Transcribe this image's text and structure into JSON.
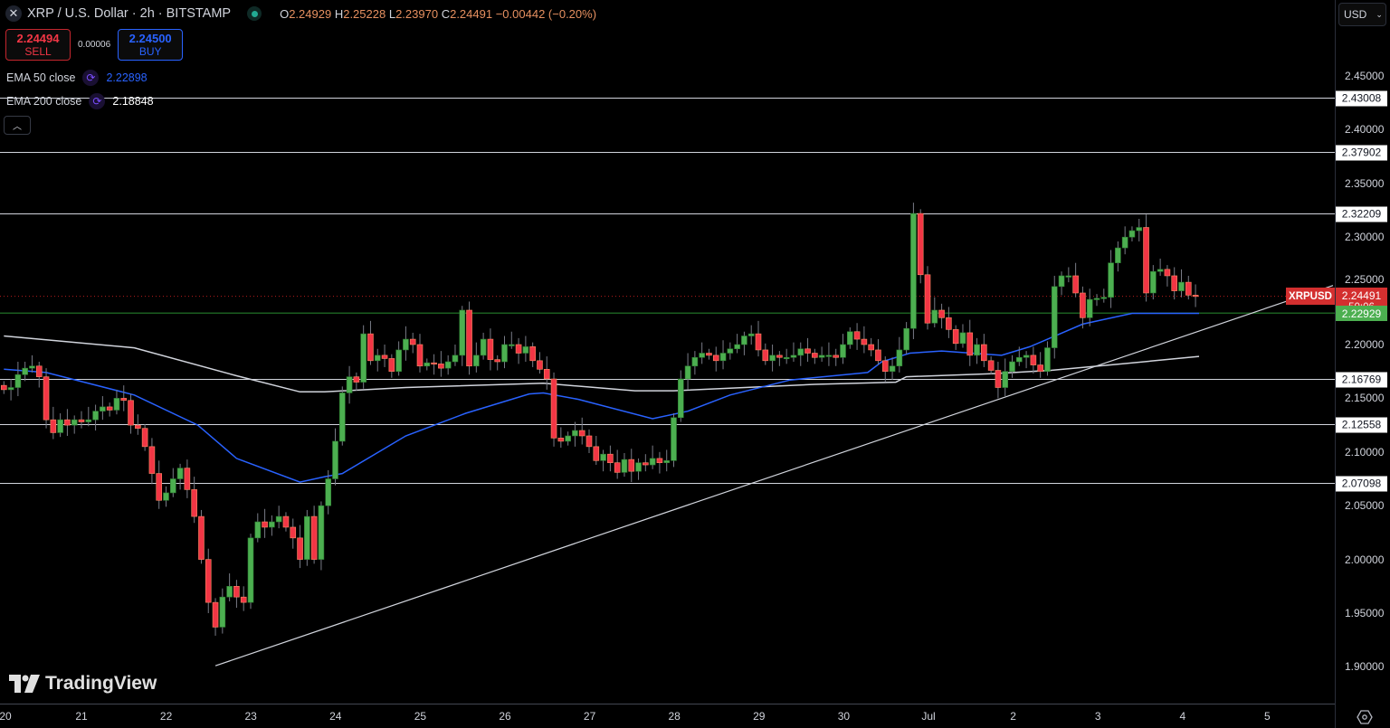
{
  "header": {
    "symbol_icon": "x-close-icon",
    "title": "XRP / U.S. Dollar · 2h · BITSTAMP",
    "market_status_color": "#22ab94",
    "ohlc": {
      "o_label": "O",
      "o": "2.24929",
      "h_label": "H",
      "h": "2.25228",
      "l_label": "L",
      "l": "2.23970",
      "c_label": "C",
      "c": "2.24491",
      "change": "−0.00442 (−0.20%)"
    }
  },
  "trade": {
    "sell_price": "2.24494",
    "sell_label": "SELL",
    "spread": "0.00006",
    "buy_price": "2.24500",
    "buy_label": "BUY"
  },
  "indicators": [
    {
      "label": "EMA 50 close",
      "value": "2.22898",
      "color": "#2962ff"
    },
    {
      "label": "EMA 200 close",
      "value": "2.18848",
      "color": "#ffffff"
    }
  ],
  "currency_selector": "USD",
  "last_price": {
    "symbol": "XRPUSD",
    "price": "2.24491",
    "countdown": "50:06",
    "ema_value": "2.22929"
  },
  "chart_data": {
    "type": "candlestick",
    "interval_hours": 2,
    "first_candle": "Jun 20 02:00",
    "closes": [
      2.158,
      2.16,
      2.172,
      2.178,
      2.18,
      2.17,
      2.13,
      2.118,
      2.13,
      2.125,
      2.13,
      2.128,
      2.13,
      2.138,
      2.142,
      2.139,
      2.15,
      2.148,
      2.125,
      2.122,
      2.105,
      2.08,
      2.055,
      2.062,
      2.075,
      2.085,
      2.065,
      2.04,
      2.0,
      1.96,
      1.937,
      1.965,
      1.975,
      1.965,
      1.96,
      2.02,
      2.035,
      2.03,
      2.035,
      2.04,
      2.03,
      2.02,
      2.0,
      2.04,
      2.0,
      2.05,
      2.075,
      2.11,
      2.155,
      2.17,
      2.165,
      2.21,
      2.185,
      2.19,
      2.187,
      2.175,
      2.195,
      2.205,
      2.2,
      2.18,
      2.183,
      2.182,
      2.178,
      2.184,
      2.19,
      2.232,
      2.18,
      2.19,
      2.205,
      2.186,
      2.184,
      2.2,
      2.2,
      2.192,
      2.198,
      2.185,
      2.177,
      2.168,
      2.113,
      2.11,
      2.115,
      2.12,
      2.115,
      2.105,
      2.092,
      2.098,
      2.09,
      2.081,
      2.093,
      2.082,
      2.09,
      2.088,
      2.094,
      2.09,
      2.092,
      2.132,
      2.168,
      2.18,
      2.188,
      2.192,
      2.19,
      2.185,
      2.192,
      2.196,
      2.2,
      2.208,
      2.21,
      2.195,
      2.185,
      2.19,
      2.188,
      2.188,
      2.19,
      2.196,
      2.192,
      2.188,
      2.19,
      2.19,
      2.188,
      2.2,
      2.212,
      2.205,
      2.2,
      2.195,
      2.185,
      2.175,
      2.18,
      2.195,
      2.215,
      2.322,
      2.265,
      2.22,
      2.232,
      2.225,
      2.214,
      2.201,
      2.211,
      2.19,
      2.2,
      2.185,
      2.176,
      2.16,
      2.175,
      2.184,
      2.188,
      2.19,
      2.181,
      2.175,
      2.197,
      2.254,
      2.264,
      2.264,
      2.248,
      2.225,
      2.242,
      2.243,
      2.244,
      2.276,
      2.29,
      2.3,
      2.306,
      2.309,
      2.248,
      2.268,
      2.27,
      2.264,
      2.25,
      2.258,
      2.246,
      2.24491
    ],
    "up_color": "#4caf50",
    "down_color": "#f23645",
    "ema50": [
      [
        "Jun 20 02:00",
        2.177
      ],
      [
        "Jun 20 14:00",
        2.174
      ],
      [
        "Jun 21 15:00",
        2.153
      ],
      [
        "Jun 22 09:00",
        2.125
      ],
      [
        "Jun 22 20:00",
        2.094
      ],
      [
        "Jun 23 14:00",
        2.072
      ],
      [
        "Jun 23 21:00",
        2.077
      ],
      [
        "Jun 24 02:00",
        2.08
      ],
      [
        "Jun 24 20:00",
        2.115
      ],
      [
        "Jun 25 13:00",
        2.136
      ],
      [
        "Jun 26 07:00",
        2.154
      ],
      [
        "Jun 26 11:00",
        2.155
      ],
      [
        "Jun 26 21:00",
        2.149
      ],
      [
        "Jun 27 18:00",
        2.131
      ],
      [
        "Jun 28 04:00",
        2.138
      ],
      [
        "Jun 28 16:00",
        2.153
      ],
      [
        "Jun 29 09:00",
        2.167
      ],
      [
        "Jun 30 07:00",
        2.174
      ],
      [
        "Jun 30 11:00",
        2.184
      ],
      [
        "Jun 30 19:00",
        2.192
      ],
      [
        "Jul 1 04:00",
        2.194
      ],
      [
        "Jul 1 21:00",
        2.19
      ],
      [
        "Jul 2 05:00",
        2.198
      ],
      [
        "Jul 2 20:00",
        2.219
      ],
      [
        "Jul 3 10:00",
        2.229
      ],
      [
        "Jul 4 05:00",
        2.229
      ]
    ],
    "ema200": [
      [
        "Jun 20 02:00",
        2.208
      ],
      [
        "Jun 21 15:00",
        2.197
      ],
      [
        "Jun 22 20:00",
        2.171
      ],
      [
        "Jun 23 14:00",
        2.156
      ],
      [
        "Jun 23 21:00",
        2.156
      ],
      [
        "Jun 24 20:00",
        2.16
      ],
      [
        "Jun 26 11:00",
        2.164
      ],
      [
        "Jun 27 13:00",
        2.157
      ],
      [
        "Jun 28 00:00",
        2.157
      ],
      [
        "Jun 29 16:00",
        2.163
      ],
      [
        "Jun 30 15:00",
        2.165
      ],
      [
        "Jun 30 18:00",
        2.17
      ],
      [
        "Jul 1 19:00",
        2.173
      ],
      [
        "Jul 2 11:00",
        2.176
      ],
      [
        "Jul 3 07:00",
        2.182
      ],
      [
        "Jul 4 05:00",
        2.189
      ]
    ],
    "trendline": [
      [
        "Jun 22 14:00",
        1.901
      ],
      [
        "Jul 5 19:00",
        2.255
      ]
    ],
    "horizontal_levels": [
      "2.43008",
      "2.37902",
      "2.32209",
      "2.16769",
      "2.12558",
      "2.07098"
    ],
    "y_ticks": [
      "2.45000",
      "2.40000",
      "2.35000",
      "2.30000",
      "2.25000",
      "2.20000",
      "2.15000",
      "2.10000",
      "2.05000",
      "2.00000",
      "1.95000",
      "1.90000"
    ],
    "ylim": [
      1.86,
      2.52
    ],
    "x_ticks": [
      "20",
      "21",
      "22",
      "23",
      "24",
      "25",
      "26",
      "27",
      "28",
      "29",
      "30",
      "Jul",
      "2",
      "3",
      "4",
      "5"
    ],
    "grid": false
  },
  "branding": {
    "logo_text": "TradingView"
  },
  "footer": {
    "settings_icon": "gear-icon"
  }
}
